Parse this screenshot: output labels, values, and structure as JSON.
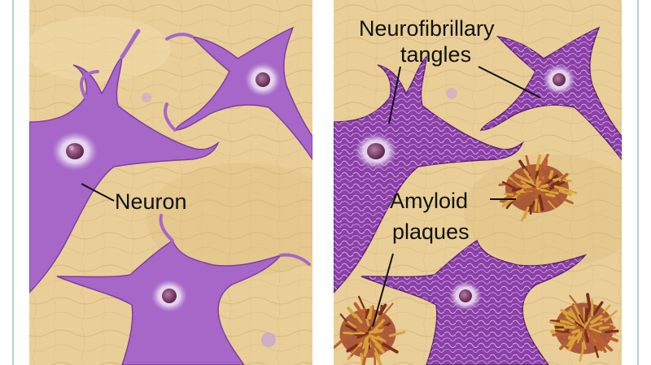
{
  "labels": {
    "neuron": "Neuron",
    "tangles_line1": "Neurofibrillary",
    "tangles_line2": "tangles",
    "plaques_line1": "Amyloid",
    "plaques_line2": "plaques"
  },
  "colors": {
    "frame": "#b9cde4",
    "tissue": "#e9cf97",
    "tissue_fiber": "#cfa977",
    "neuron_healthy": "#a667c9",
    "neuron_diseased": "#8b3fa8",
    "tangle_strand": "#e6c9f0",
    "nucleus": "#7a3a6a",
    "plaque": "#a0472a",
    "plaque_tip": "#d9a23a",
    "leader_line": "#111111",
    "text": "#111111"
  },
  "panels": [
    {
      "name": "healthy-brain-tissue"
    },
    {
      "name": "alzheimers-brain-tissue"
    }
  ]
}
